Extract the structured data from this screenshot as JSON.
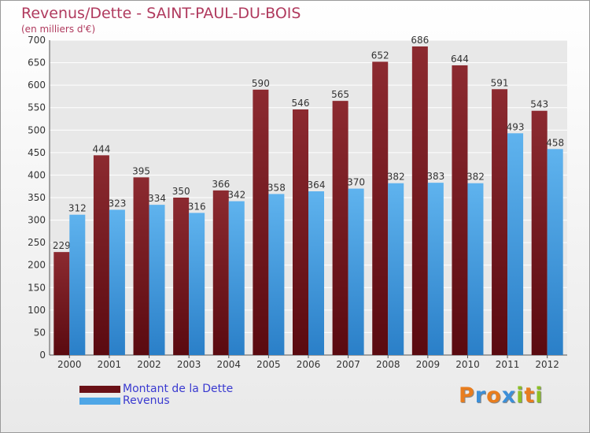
{
  "chart_data": {
    "type": "bar",
    "title": "Revenus/Dette - SAINT-PAUL-DU-BOIS",
    "subtitle": "(en milliers d'€)",
    "categories": [
      "2000",
      "2001",
      "2002",
      "2003",
      "2004",
      "2005",
      "2006",
      "2007",
      "2008",
      "2009",
      "2010",
      "2011",
      "2012"
    ],
    "series": [
      {
        "name": "Montant de la Dette",
        "color": "#7a1c22",
        "values": [
          229,
          444,
          395,
          350,
          366,
          590,
          546,
          565,
          652,
          686,
          644,
          591,
          543
        ]
      },
      {
        "name": "Revenus",
        "color": "#4ea6e6",
        "values": [
          312,
          323,
          334,
          316,
          342,
          358,
          364,
          370,
          382,
          383,
          382,
          493,
          458
        ]
      }
    ],
    "yticks": [
      0,
      50,
      100,
      150,
      200,
      250,
      300,
      350,
      400,
      450,
      500,
      550,
      600,
      650,
      700
    ],
    "ylim": [
      0,
      700
    ],
    "grid": true,
    "legend": "bottom-left"
  },
  "logo": {
    "letters": [
      "P",
      "r",
      "o",
      "x",
      "i",
      "t",
      "i"
    ],
    "colors": [
      "#e87d1e",
      "#3c8fd8",
      "#e87d1e",
      "#3c8fd8",
      "#8cbf26",
      "#e87d1e",
      "#8cbf26"
    ]
  }
}
